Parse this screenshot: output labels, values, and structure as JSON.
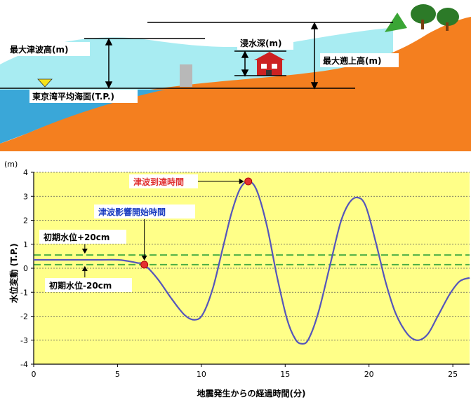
{
  "diagram": {
    "label_max_tsunami_height": "最大津波高(m)",
    "label_inundation_depth": "浸水深(m)",
    "label_max_runup_height": "最大遡上高(m)",
    "label_tokyo_bay_mean_sea_level": "東京湾平均海面(T.P.)"
  },
  "colors": {
    "sea": "#a8ecf2",
    "sea_surface": "#3aa7d8",
    "land": "#f47f1f",
    "plot_background": "#ffff88",
    "curve": "#5555bb",
    "marker": "#e53030",
    "band": "#4cae44",
    "label_red": "#e03030",
    "label_blue": "#1a3cc0",
    "label_black": "#000000"
  },
  "chart_data": {
    "type": "line",
    "title": "",
    "xlabel": "地震発生からの経過時間(分)",
    "ylabel": "水位変動 (T.P.)",
    "yunit": "(m)",
    "xlim": [
      0,
      26
    ],
    "ylim": [
      -4,
      4
    ],
    "xticks": [
      "0",
      "5",
      "10",
      "15",
      "20",
      "25"
    ],
    "yticks": [
      "4",
      "3",
      "2",
      "1",
      "0",
      "-1",
      "-2",
      "-3",
      "-4"
    ],
    "grid": "horizontal dotted",
    "series": [
      {
        "x": [
          0,
          1,
          2,
          3,
          4,
          5,
          5.6,
          6.2,
          6.6,
          7.4,
          8.2,
          9,
          9.6,
          10.1,
          10.7,
          11.3,
          11.8,
          12.3,
          12.8,
          13.3,
          13.9,
          14.5,
          15.1,
          15.6,
          16,
          16.4,
          17,
          17.7,
          18.3,
          18.8,
          19.3,
          19.8,
          20.4,
          21,
          21.6,
          22.3,
          22.9,
          23.5,
          24.1,
          24.8,
          25.4,
          26
        ],
        "y": [
          0.35,
          0.35,
          0.35,
          0.35,
          0.35,
          0.35,
          0.3,
          0.22,
          0.15,
          -0.45,
          -1.25,
          -1.95,
          -2.15,
          -1.9,
          -0.8,
          0.9,
          2.3,
          3.3,
          3.62,
          3.25,
          1.8,
          -0.3,
          -2.1,
          -2.95,
          -3.15,
          -2.95,
          -1.8,
          0.2,
          1.9,
          2.7,
          2.95,
          2.6,
          1.1,
          -0.6,
          -1.9,
          -2.75,
          -3.0,
          -2.75,
          -2.0,
          -1.1,
          -0.55,
          -0.4
        ]
      }
    ],
    "bands": [
      {
        "label": "初期水位+20cm",
        "y": 0.55
      },
      {
        "label": "初期水位-20cm",
        "y": 0.15
      }
    ],
    "annotations": [
      {
        "label": "津波到達時間",
        "x": 12.8,
        "y": 3.62
      },
      {
        "label": "津波影響開始時間",
        "x": 6.6,
        "y": 0.15
      }
    ]
  }
}
